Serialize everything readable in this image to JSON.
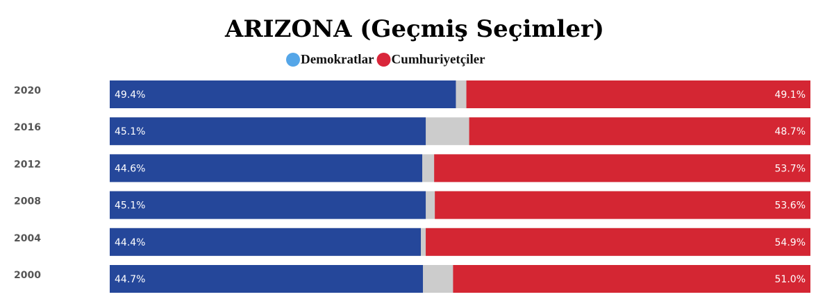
{
  "chart_data": {
    "type": "stacked-bar-horizontal",
    "title": "ARIZONA (Geçmiş Seçimler)",
    "categories": [
      "2020",
      "2016",
      "2012",
      "2008",
      "2004",
      "2000"
    ],
    "xlim": [
      0,
      100
    ],
    "series": [
      {
        "name": "Demokratlar",
        "color": "#25479a",
        "legend_color": "#55a6e8",
        "anchor": "left",
        "values": [
          49.4,
          45.1,
          44.6,
          45.1,
          44.4,
          44.7
        ],
        "value_labels": [
          "49.4%",
          "45.1%",
          "44.6%",
          "45.1%",
          "44.4%",
          "44.7%"
        ]
      },
      {
        "name": "Cumhuriyetçiler",
        "color": "#d42633",
        "legend_color": "#d9263a",
        "anchor": "right",
        "values": [
          49.1,
          48.7,
          53.7,
          53.6,
          54.9,
          51.0
        ],
        "value_labels": [
          "49.1%",
          "48.7%",
          "53.7%",
          "53.6%",
          "54.9%",
          "51.0%"
        ]
      }
    ],
    "track_color": "#cccccc"
  }
}
